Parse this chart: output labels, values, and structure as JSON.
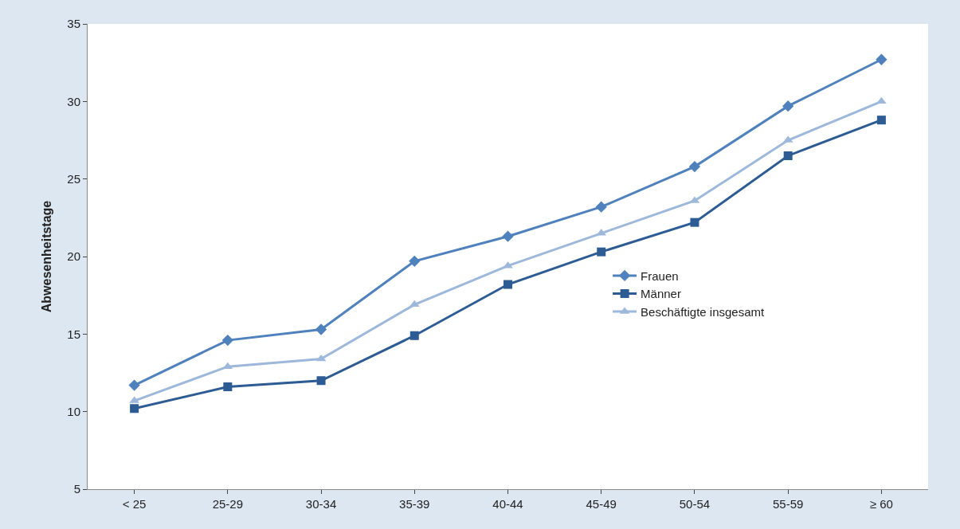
{
  "chart_data": {
    "type": "line",
    "ylabel": "Abwesenheitstage",
    "categories": [
      "< 25",
      "25-29",
      "30-34",
      "35-39",
      "40-44",
      "45-49",
      "50-54",
      "55-59",
      "≥ 60"
    ],
    "series": [
      {
        "name": "Frauen",
        "color": "#4f81bd",
        "marker": "diamond",
        "values": [
          11.7,
          14.6,
          15.3,
          19.7,
          21.3,
          23.2,
          25.8,
          29.7,
          32.7
        ]
      },
      {
        "name": "Männer",
        "color": "#2c5c93",
        "marker": "square",
        "values": [
          10.2,
          11.6,
          12.0,
          14.9,
          18.2,
          20.3,
          22.2,
          26.5,
          28.8
        ]
      },
      {
        "name": "Beschäftigte insgesamt",
        "color": "#9db8da",
        "marker": "triangle",
        "values": [
          10.7,
          12.9,
          13.4,
          16.9,
          19.4,
          21.5,
          23.6,
          27.5,
          30.0
        ]
      }
    ],
    "ylim": [
      5,
      35
    ],
    "yticks": [
      5,
      10,
      15,
      20,
      25,
      30,
      35
    ],
    "legend": "right",
    "line_style": "solid"
  }
}
